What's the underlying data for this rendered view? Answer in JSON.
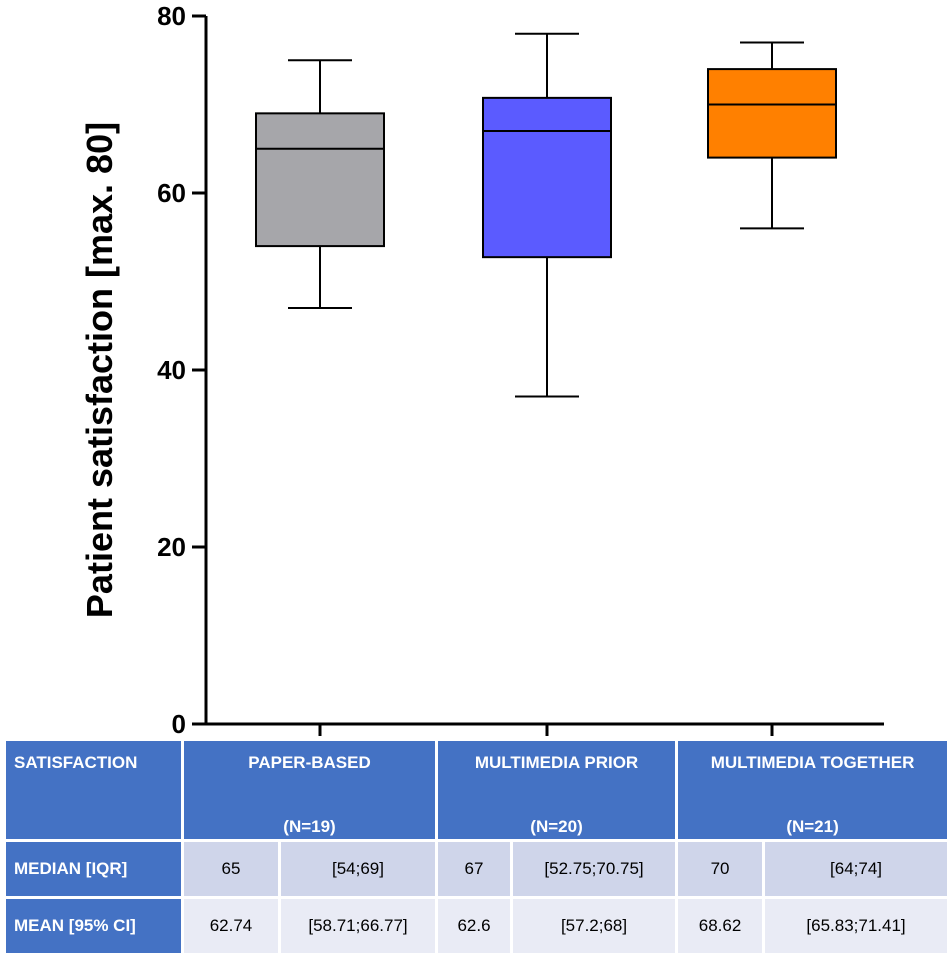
{
  "chart_data": {
    "type": "boxplot",
    "title": "",
    "xlabel": "",
    "ylabel": "Patient satisfaction [max. 80]",
    "ylim": [
      0,
      80
    ],
    "yticks": [
      0,
      20,
      40,
      60,
      80
    ],
    "series": [
      {
        "name": "PAPER-BASED",
        "min": 47,
        "q1": 54,
        "median": 65,
        "q3": 69,
        "max": 75,
        "color": "#a6a6aa"
      },
      {
        "name": "MULTIMEDIA PRIOR",
        "min": 37,
        "q1": 52.75,
        "median": 67,
        "q3": 70.75,
        "max": 78,
        "color": "#5b5bff"
      },
      {
        "name": "MULTIMEDIA TOGETHER",
        "min": 56,
        "q1": 64,
        "median": 70,
        "q3": 74,
        "max": 77,
        "color": "#ff8000"
      }
    ]
  },
  "table": {
    "corner": "SATISFACTION",
    "groups": [
      {
        "name": "PAPER-BASED",
        "n": "(N=19)"
      },
      {
        "name": "MULTIMEDIA PRIOR",
        "n": "(N=20)"
      },
      {
        "name": "MULTIMEDIA TOGETHER",
        "n": "(N=21)"
      }
    ],
    "rows": [
      {
        "label": "MEDIAN [IQR]",
        "cells": [
          "65",
          "[54;69]",
          "67",
          "[52.75;70.75]",
          "70",
          "[64;74]"
        ]
      },
      {
        "label": "MEAN [95% CI]",
        "cells": [
          "62.74",
          "[58.71;66.77]",
          "62.6",
          "[57.2;68]",
          "68.62",
          "[65.83;71.41]"
        ]
      }
    ]
  }
}
